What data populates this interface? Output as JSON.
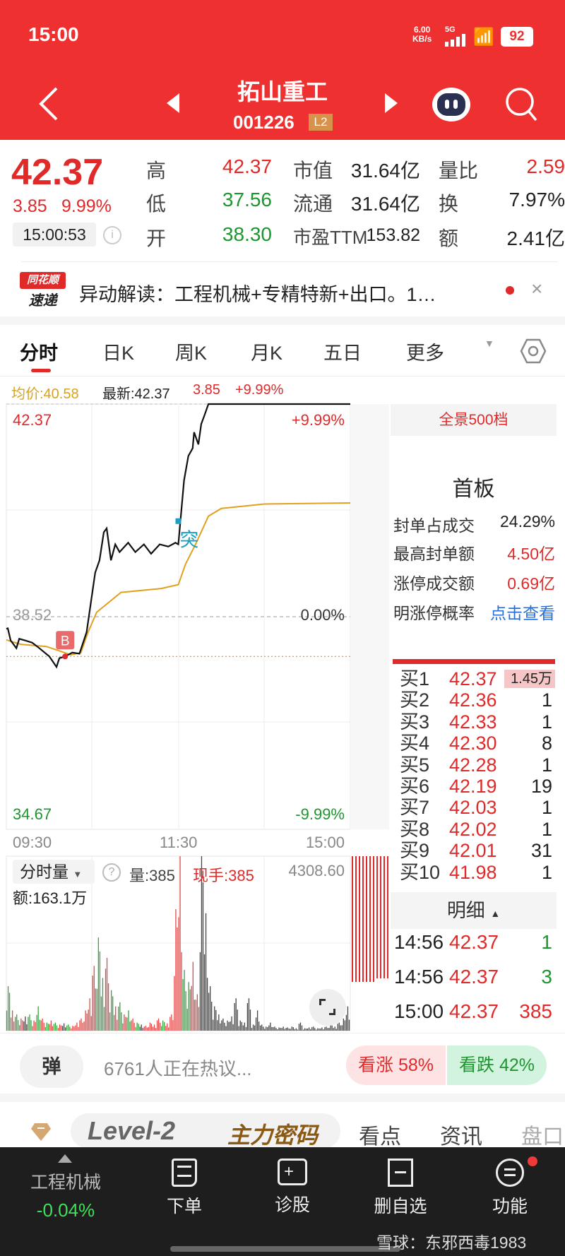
{
  "status_bar": {
    "time": "15:00",
    "net_speed": "6.00",
    "net_unit": "KB/s",
    "network": "5G",
    "battery": "92"
  },
  "header": {
    "title": "拓山重工",
    "code": "001226",
    "badge": "L2"
  },
  "quote": {
    "price": "42.37",
    "change": "3.85",
    "change_pct": "9.99%",
    "time": "15:00:53",
    "rows": [
      {
        "l1": "高",
        "v1": "42.37",
        "c1": "red",
        "l2": "市值",
        "v2": "31.64亿",
        "l3": "量比",
        "v3": "2.59",
        "c3": "red"
      },
      {
        "l1": "低",
        "v1": "37.56",
        "c1": "green",
        "l2": "流通",
        "v2": "31.64亿",
        "l3": "换",
        "v3": "7.97%",
        "c3": "blk"
      },
      {
        "l1": "开",
        "v1": "38.30",
        "c1": "green",
        "l2": "市盈TTM",
        "v2": "153.82",
        "l3": "额",
        "v3": "2.41亿",
        "c3": "blk"
      }
    ]
  },
  "banner": {
    "logo_top": "同花顺",
    "logo_bottom": "速递",
    "text": "异动解读：工程机械+专精特新+出口。1…"
  },
  "tabs": [
    {
      "label": "分时",
      "active": true
    },
    {
      "label": "日K"
    },
    {
      "label": "周K"
    },
    {
      "label": "月K"
    },
    {
      "label": "五日"
    },
    {
      "label": "更多"
    }
  ],
  "chart_info": {
    "avg": "均价:40.58",
    "latest": "最新:42.37",
    "change": "3.85",
    "pct": "+9.99%"
  },
  "chart_data": {
    "type": "line",
    "x_ticks": [
      "09:30",
      "11:30",
      "15:00"
    ],
    "y_left": {
      "top": "42.37",
      "mid": "38.52",
      "bottom": "34.67"
    },
    "y_right": {
      "top": "+9.99%",
      "mid": "0.00%",
      "bottom": "-9.99%"
    },
    "ylim": [
      34.67,
      42.37
    ],
    "xlim_minutes": [
      0,
      240
    ],
    "price": [
      [
        0,
        38.3
      ],
      [
        1,
        38.31
      ],
      [
        3,
        38.09
      ],
      [
        7,
        37.95
      ],
      [
        9,
        38.12
      ],
      [
        13,
        38.09
      ],
      [
        18,
        38.05
      ],
      [
        23,
        37.95
      ],
      [
        30,
        37.8
      ],
      [
        35,
        37.61
      ],
      [
        37,
        37.77
      ],
      [
        41,
        37.8
      ],
      [
        46,
        37.87
      ],
      [
        51,
        37.85
      ],
      [
        56,
        38.24
      ],
      [
        60,
        38.96
      ],
      [
        62,
        39.32
      ],
      [
        65,
        39.54
      ],
      [
        68,
        40.05
      ],
      [
        70,
        40.12
      ],
      [
        73,
        39.54
      ],
      [
        76,
        39.83
      ],
      [
        79,
        39.69
      ],
      [
        85,
        39.86
      ],
      [
        90,
        39.69
      ],
      [
        96,
        39.83
      ],
      [
        101,
        39.66
      ],
      [
        107,
        39.83
      ],
      [
        113,
        39.79
      ],
      [
        118,
        39.86
      ],
      [
        120,
        39.83
      ],
      [
        122,
        40.41
      ],
      [
        124,
        40.99
      ],
      [
        127,
        41.43
      ],
      [
        130,
        41.57
      ],
      [
        131,
        41.86
      ],
      [
        134,
        41.64
      ],
      [
        136,
        42.01
      ],
      [
        138,
        42.15
      ],
      [
        141,
        42.37
      ],
      [
        240,
        42.37
      ]
    ],
    "avg_price": [
      [
        0,
        38.1
      ],
      [
        10,
        38.02
      ],
      [
        28,
        37.98
      ],
      [
        45,
        37.83
      ],
      [
        52,
        37.87
      ],
      [
        57,
        38.24
      ],
      [
        63,
        38.6
      ],
      [
        80,
        38.96
      ],
      [
        108,
        39.03
      ],
      [
        120,
        39.1
      ],
      [
        125,
        39.47
      ],
      [
        132,
        39.83
      ],
      [
        141,
        40.34
      ],
      [
        150,
        40.48
      ],
      [
        180,
        40.56
      ],
      [
        240,
        40.58
      ]
    ],
    "markers": [
      {
        "label": "B",
        "minute": 41,
        "price": 37.8
      },
      {
        "label": "突",
        "minute": 120,
        "price": 40.25
      }
    ],
    "volume": {
      "label": "分时量",
      "amount": "额:163.1万",
      "vol": "量:385",
      "current": "现手:385",
      "max": "4308.60",
      "step_minutes": 3,
      "values": [
        1100,
        500,
        400,
        300,
        350,
        400,
        250,
        600,
        300,
        200,
        250,
        200,
        150,
        180,
        150,
        120,
        200,
        300,
        500,
        800,
        1600,
        2300,
        1300,
        1800,
        1000,
        600,
        700,
        400,
        500,
        300,
        200,
        150,
        120,
        200,
        150,
        300,
        250,
        180,
        400,
        3000,
        4308,
        1500,
        1200,
        1700,
        900,
        4308,
        2900,
        1100,
        600,
        400,
        300,
        250,
        350,
        800,
        250,
        200,
        800,
        150,
        500,
        150,
        100,
        200,
        100,
        80,
        100,
        80,
        100,
        60,
        200,
        60,
        80,
        100,
        60,
        80,
        100,
        150,
        100,
        200,
        300,
        600
      ],
      "dirs": "grgrkgrgrgrgrkgrrrrrrggrgrgrgrgkrrrrgrrrrggrrkkkkkkkkkkkkkkkkkkkkkkkkkkkkkkkkkk"
    }
  },
  "panel": {
    "header": "全景500档",
    "board": "首板",
    "stats": [
      {
        "label": "封单占成交",
        "value": "24.29%",
        "color": "blk"
      },
      {
        "label": "最高封单额",
        "value": "4.50亿",
        "color": "red"
      },
      {
        "label": "涨停成交额",
        "value": "0.69亿",
        "color": "red"
      },
      {
        "label": "明涨停概率",
        "value": "点击查看",
        "color": "link"
      }
    ],
    "bids": [
      {
        "label": "买1",
        "price": "42.37",
        "vol": "1.45万"
      },
      {
        "label": "买2",
        "price": "42.36",
        "vol": "1"
      },
      {
        "label": "买3",
        "price": "42.33",
        "vol": "1"
      },
      {
        "label": "买4",
        "price": "42.30",
        "vol": "8"
      },
      {
        "label": "买5",
        "price": "42.28",
        "vol": "1"
      },
      {
        "label": "买6",
        "price": "42.19",
        "vol": "19"
      },
      {
        "label": "买7",
        "price": "42.03",
        "vol": "1"
      },
      {
        "label": "买8",
        "price": "42.02",
        "vol": "1"
      },
      {
        "label": "买9",
        "price": "42.01",
        "vol": "31"
      },
      {
        "label": "买10",
        "price": "41.98",
        "vol": "1"
      }
    ],
    "detail_header": "明细",
    "ticks": [
      {
        "time": "14:56",
        "price": "42.37",
        "vol": "1",
        "color": "green"
      },
      {
        "time": "14:56",
        "price": "42.37",
        "vol": "3",
        "color": "green"
      },
      {
        "time": "15:00",
        "price": "42.37",
        "vol": "385",
        "color": "red"
      }
    ]
  },
  "comment_bar": {
    "danmu": "弹",
    "text": "6761人正在热议...",
    "bull": "看涨 58%",
    "bear": "看跌 42%",
    "bull_pct": 58,
    "bear_pct": 42
  },
  "sub_tabs": {
    "level2": "Level-2",
    "secret": "主力密码",
    "items": [
      "看点",
      "资讯",
      "盘口"
    ]
  },
  "bottom_nav": {
    "sector": "工程机械",
    "sector_change": "-0.04%",
    "items": [
      {
        "label": "下单"
      },
      {
        "label": "诊股"
      },
      {
        "label": "删自选"
      },
      {
        "label": "功能"
      }
    ]
  },
  "watermark": "雪球：东邪西毒1983",
  "colors": {
    "brand_red": "#ee3130",
    "up": "#e02a2a",
    "down": "#1e9630",
    "avg_line": "#e0a020",
    "bottom_bar": "#1e1e1e"
  }
}
